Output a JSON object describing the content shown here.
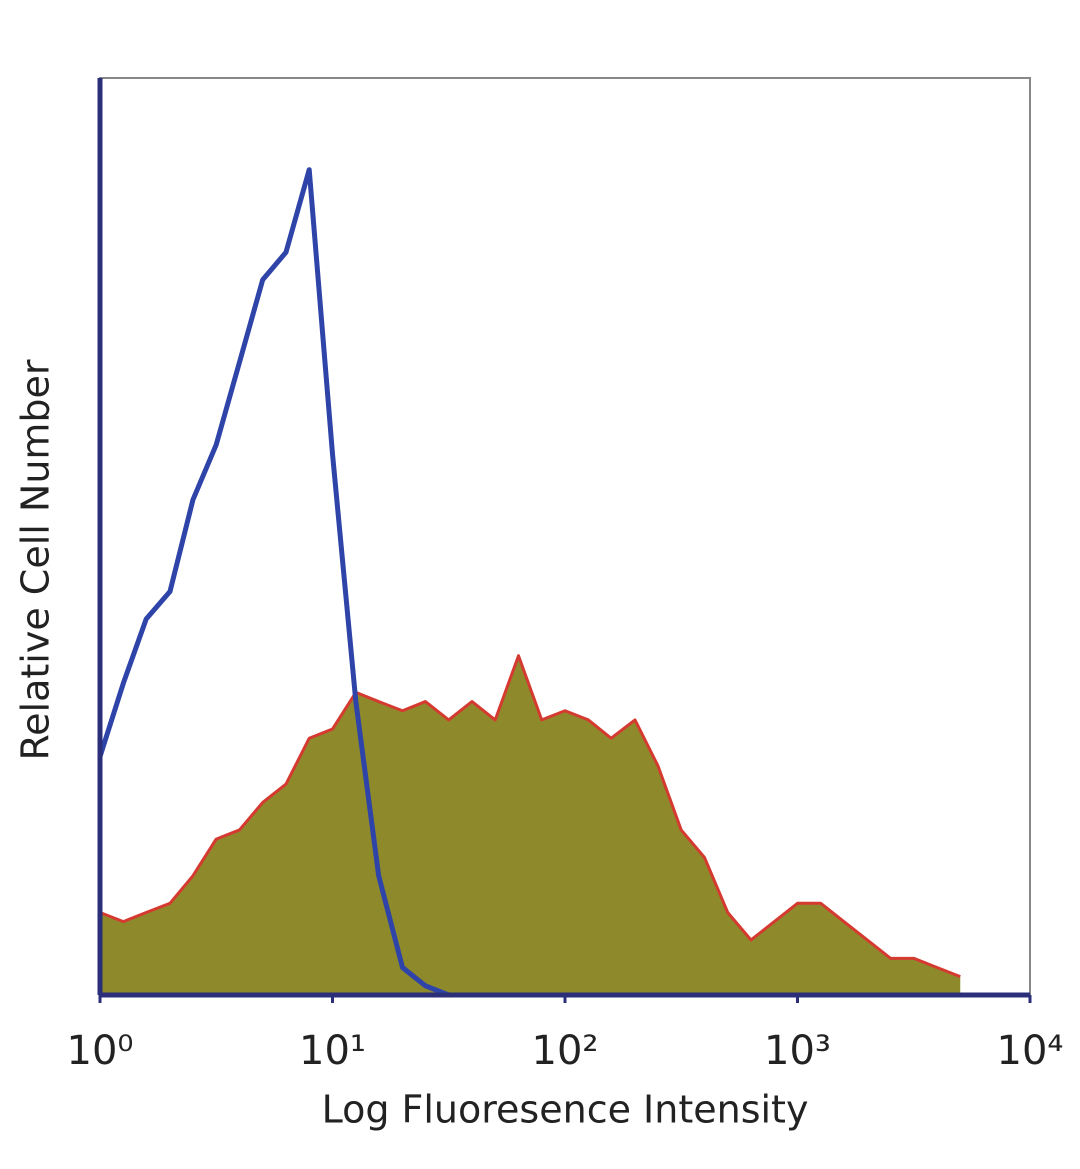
{
  "chart_data": {
    "type": "area",
    "x_label": "Log Fluoresence Intensity",
    "y_label": "Relative Cell Number",
    "xscale": "log",
    "xlim": [
      1,
      10000
    ],
    "ylim": [
      0,
      100
    ],
    "xticks": [
      {
        "value": 1,
        "label": "10⁰"
      },
      {
        "value": 10,
        "label": "10¹"
      },
      {
        "value": 100,
        "label": "10²"
      },
      {
        "value": 1000,
        "label": "10³"
      },
      {
        "value": 10000,
        "label": "10⁴"
      }
    ],
    "x": [
      1,
      1.26,
      1.58,
      2,
      2.51,
      3.16,
      3.98,
      5.01,
      6.31,
      7.94,
      10,
      12.6,
      15.8,
      20,
      25.1,
      31.6,
      39.8,
      50.1,
      63.1,
      79.4,
      100,
      126,
      158,
      200,
      251,
      316,
      398,
      501,
      631,
      794,
      1000,
      1259,
      1585,
      1995,
      2512,
      3162,
      3981,
      5012,
      6310,
      7943,
      10000
    ],
    "series": [
      {
        "color": "#d43a2f",
        "fill": "#8e8a2c",
        "values": [
          9,
          8,
          9,
          10,
          13,
          17,
          18,
          21,
          23,
          28,
          29,
          33,
          32,
          31,
          32,
          30,
          32,
          30,
          37,
          30,
          31,
          30,
          28,
          30,
          25,
          18,
          15,
          9,
          6,
          8,
          10,
          10,
          8,
          6,
          4,
          4,
          3,
          2,
          null,
          null,
          null
        ]
      },
      {
        "color": "#2f44a8",
        "values": [
          26,
          34,
          41,
          44,
          54,
          60,
          69,
          78,
          81,
          90,
          59,
          32,
          13,
          3,
          1,
          0,
          null,
          null,
          null,
          null,
          null,
          null,
          null,
          null,
          null,
          null,
          null,
          null,
          null,
          null,
          null,
          null,
          null,
          null,
          null,
          null,
          null,
          null,
          null,
          null,
          null
        ]
      }
    ]
  }
}
